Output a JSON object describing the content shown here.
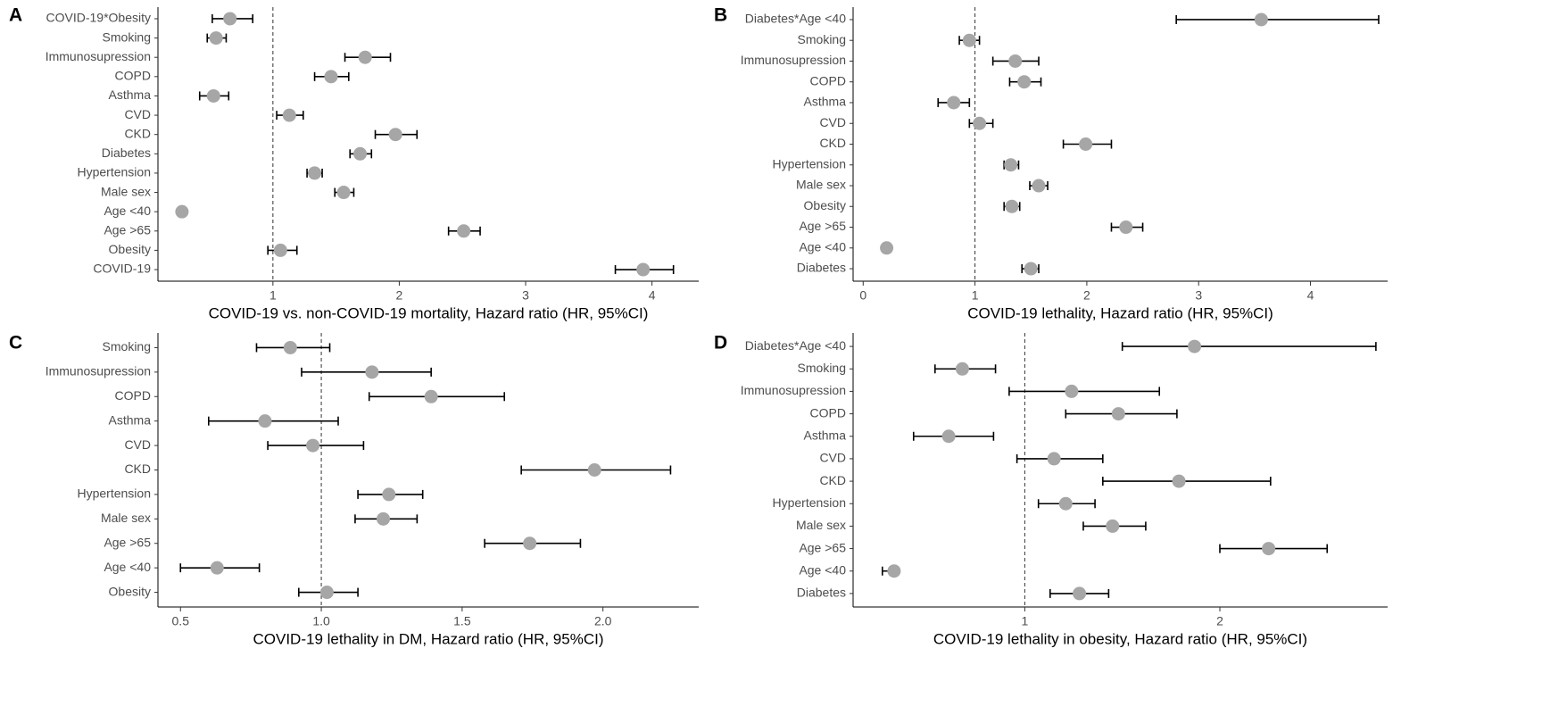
{
  "chart_data": [
    {
      "type": "forest",
      "panel": "A",
      "xlabel": "COVID-19 vs. non-COVID-19 mortality, Hazard ratio (HR, 95%CI)",
      "categories": [
        "COVID-19*Obesity",
        "Smoking",
        "Immunosupression",
        "COPD",
        "Asthma",
        "CVD",
        "CKD",
        "Diabetes",
        "Hypertension",
        "Male sex",
        "Age <40",
        "Age >65",
        "Obesity",
        "COVID-19"
      ],
      "values": [
        0.66,
        0.55,
        1.73,
        1.46,
        0.53,
        1.13,
        1.97,
        1.69,
        1.33,
        1.56,
        0.28,
        2.51,
        1.06,
        3.93
      ],
      "lower": [
        0.52,
        0.48,
        1.57,
        1.33,
        0.42,
        1.03,
        1.81,
        1.61,
        1.27,
        1.49,
        null,
        2.39,
        0.96,
        3.71
      ],
      "upper": [
        0.84,
        0.63,
        1.93,
        1.6,
        0.65,
        1.24,
        2.14,
        1.78,
        1.39,
        1.64,
        null,
        2.64,
        1.19,
        4.17
      ],
      "xlim": [
        0.09,
        4.37
      ],
      "xticks": [
        1,
        2,
        3,
        4
      ],
      "refline": 1,
      "color": "#a6a6a6"
    },
    {
      "type": "forest",
      "panel": "B",
      "xlabel": "COVID-19 lethality, Hazard ratio (HR, 95%CI)",
      "categories": [
        "Diabetes*Age <40",
        "Smoking",
        "Immunosupression",
        "COPD",
        "Asthma",
        "CVD",
        "CKD",
        "Hypertension",
        "Male sex",
        "Obesity",
        "Age >65",
        "Age <40",
        "Diabetes"
      ],
      "values": [
        3.56,
        0.95,
        1.36,
        1.44,
        0.81,
        1.04,
        1.99,
        1.32,
        1.57,
        1.33,
        2.35,
        0.21,
        1.5
      ],
      "lower": [
        2.8,
        0.86,
        1.16,
        1.31,
        0.67,
        0.95,
        1.79,
        1.26,
        1.49,
        1.26,
        2.22,
        null,
        1.42
      ],
      "upper": [
        4.61,
        1.04,
        1.57,
        1.59,
        0.95,
        1.16,
        2.22,
        1.39,
        1.65,
        1.4,
        2.5,
        null,
        1.57
      ],
      "xlim": [
        -0.09,
        4.69
      ],
      "xticks": [
        0,
        1,
        2,
        3,
        4
      ],
      "refline": 1,
      "color": "#a6a6a6"
    },
    {
      "type": "forest",
      "panel": "C",
      "xlabel": "COVID-19 lethality in DM, Hazard ratio (HR, 95%CI)",
      "categories": [
        "Smoking",
        "Immunosupression",
        "COPD",
        "Asthma",
        "CVD",
        "CKD",
        "Hypertension",
        "Male sex",
        "Age >65",
        "Age <40",
        "Obesity"
      ],
      "values": [
        0.89,
        1.18,
        1.39,
        0.8,
        0.97,
        1.97,
        1.24,
        1.22,
        1.74,
        0.63,
        1.02
      ],
      "lower": [
        0.77,
        0.93,
        1.17,
        0.6,
        0.81,
        1.71,
        1.13,
        1.12,
        1.58,
        0.5,
        0.92
      ],
      "upper": [
        1.03,
        1.39,
        1.65,
        1.06,
        1.15,
        2.24,
        1.36,
        1.34,
        1.92,
        0.78,
        1.13
      ],
      "xlim": [
        0.42,
        2.34
      ],
      "xticks": [
        0.5,
        {
          "value": 1,
          "label": "1.0"
        },
        1.5,
        {
          "value": 2,
          "label": "2.0"
        }
      ],
      "refline": 1,
      "color": "#a6a6a6"
    },
    {
      "type": "forest",
      "panel": "D",
      "xlabel": "COVID-19 lethality in obesity, Hazard ratio (HR, 95%CI)",
      "categories": [
        "Diabetes*Age <40",
        "Smoking",
        "Immunosupression",
        "COPD",
        "Asthma",
        "CVD",
        "CKD",
        "Hypertension",
        "Male sex",
        "Age >65",
        "Age <40",
        "Diabetes"
      ],
      "values": [
        1.87,
        0.68,
        1.24,
        1.48,
        0.61,
        1.15,
        1.79,
        1.21,
        1.45,
        2.25,
        0.33,
        1.28
      ],
      "lower": [
        1.5,
        0.54,
        0.92,
        1.21,
        0.43,
        0.96,
        1.4,
        1.07,
        1.3,
        2.0,
        0.27,
        1.13
      ],
      "upper": [
        2.8,
        0.85,
        1.69,
        1.78,
        0.84,
        1.4,
        2.26,
        1.36,
        1.62,
        2.55,
        0.35,
        1.43
      ],
      "xlim": [
        0.12,
        2.86
      ],
      "xticks": [
        1,
        2
      ],
      "refline": 1,
      "color": "#a6a6a6"
    }
  ]
}
